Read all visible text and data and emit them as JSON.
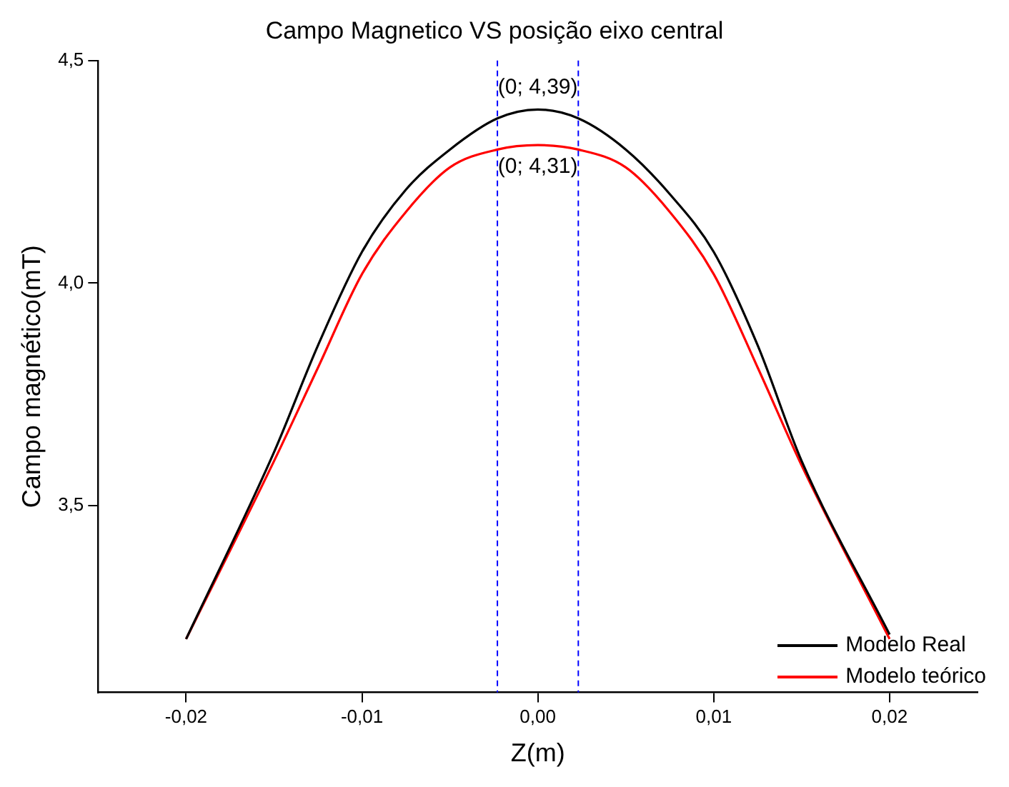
{
  "chart_data": {
    "type": "line",
    "title": "Campo Magnetico VS posição eixo central",
    "xlabel": "Z(m)",
    "ylabel": "Campo magnético(mT)",
    "series": [
      {
        "name": "Modelo Real",
        "color": "#000000",
        "x": [
          -0.02,
          -0.015,
          -0.0125,
          -0.01,
          -0.0075,
          -0.005,
          -0.0023,
          0,
          0.0023,
          0.005,
          0.0075,
          0.01,
          0.0125,
          0.015,
          0.02
        ],
        "values": [
          3.2,
          3.62,
          3.86,
          4.07,
          4.21,
          4.3,
          4.37,
          4.39,
          4.37,
          4.3,
          4.2,
          4.07,
          3.86,
          3.6,
          3.21
        ]
      },
      {
        "name": "Modelo teórico",
        "color": "#ff0000",
        "x": [
          -0.02,
          -0.015,
          -0.0125,
          -0.01,
          -0.0075,
          -0.005,
          -0.0023,
          0,
          0.0023,
          0.005,
          0.0075,
          0.01,
          0.0125,
          0.015,
          0.02
        ],
        "values": [
          3.2,
          3.6,
          3.81,
          4.02,
          4.16,
          4.26,
          4.3,
          4.31,
          4.3,
          4.26,
          4.16,
          4.02,
          3.81,
          3.59,
          3.2
        ]
      }
    ],
    "xlim": [
      -0.025,
      0.025
    ],
    "xticks": [
      {
        "value": -0.02,
        "label": "-0,02"
      },
      {
        "value": -0.01,
        "label": "-0,01"
      },
      {
        "value": 0,
        "label": "0,00"
      },
      {
        "value": 0.01,
        "label": "0,01"
      },
      {
        "value": 0.02,
        "label": "0,02"
      }
    ],
    "ylim": [
      3.08,
      4.5
    ],
    "yticks": [
      {
        "value": 3.5,
        "label": "3,5"
      },
      {
        "value": 4,
        "label": "4,0"
      },
      {
        "value": 4.5,
        "label": "4,5"
      }
    ],
    "ref_lines": [
      {
        "axis": "x",
        "value": -0.0023,
        "color": "#0000ff",
        "line_style": "dashed"
      },
      {
        "axis": "x",
        "value": 0.0023,
        "color": "#0000ff",
        "line_style": "dashed"
      }
    ],
    "annotations": [
      {
        "text": "(0; 4,39)",
        "x": 0,
        "y": 4.39
      },
      {
        "text": "(0; 4,31)",
        "x": 0,
        "y": 4.31
      }
    ],
    "legend": "bottom right",
    "grid": false,
    "marker": "none",
    "line_style": "solid"
  }
}
